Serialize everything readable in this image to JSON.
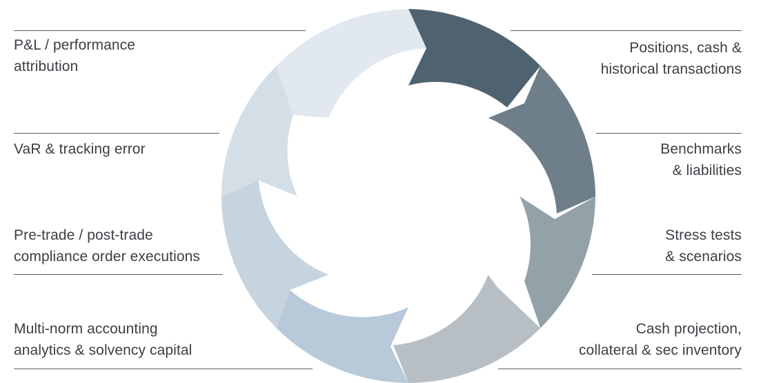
{
  "diagram": {
    "left_labels": [
      {
        "id": "pnl",
        "text": "P&L / performance\nattribution"
      },
      {
        "id": "var",
        "text": "VaR & tracking error"
      },
      {
        "id": "compliance",
        "text": "Pre-trade / post-trade\ncompliance order executions"
      },
      {
        "id": "accounting",
        "text": "Multi-norm accounting\nanalytics & solvency capital"
      }
    ],
    "right_labels": [
      {
        "id": "positions",
        "text": "Positions, cash &\nhistorical transactions"
      },
      {
        "id": "benchmarks",
        "text": "Benchmarks\n& liabilities"
      },
      {
        "id": "stress",
        "text": "Stress tests\n& scenarios"
      },
      {
        "id": "cash",
        "text": "Cash projection,\ncollateral & sec inventory"
      }
    ],
    "segment_colors": [
      "#4f6270",
      "#6e7f8a",
      "#93a1a9",
      "#b8bfc4",
      "#b8cad9",
      "#c6d4df",
      "#d4dee7",
      "#e1e8ef"
    ]
  }
}
